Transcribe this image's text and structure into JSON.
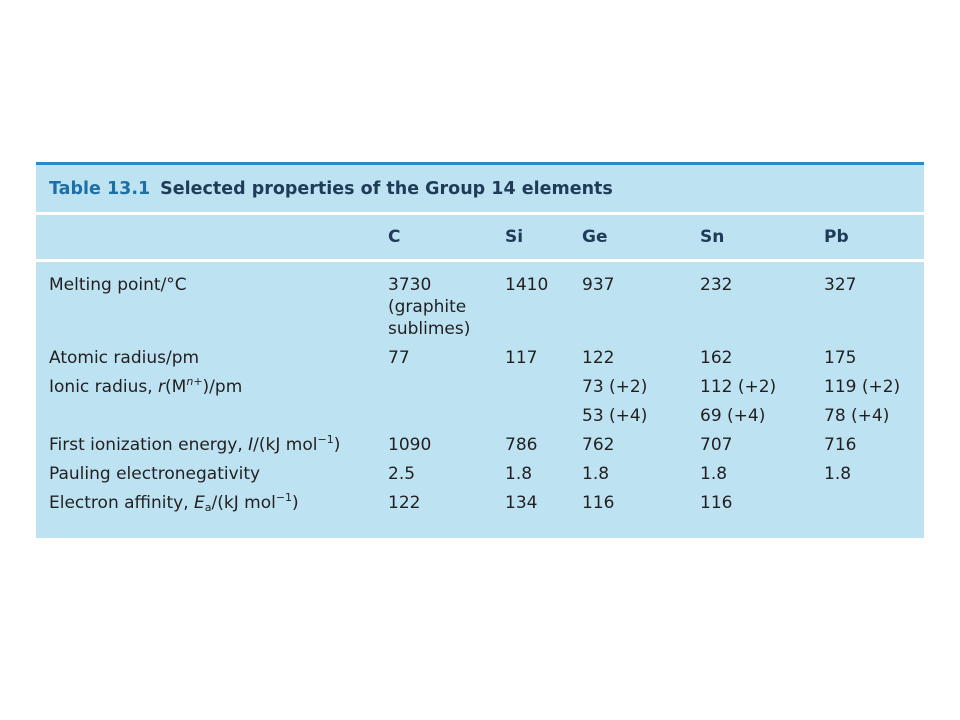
{
  "table": {
    "label": "Table 13.1",
    "title": "Selected properties of the Group 14 elements",
    "columns": [
      "C",
      "Si",
      "Ge",
      "Sn",
      "Pb"
    ],
    "rows": [
      {
        "property": {
          "pre": "Melting point/°C"
        },
        "cells": [
          "3730",
          "1410",
          "937",
          "232",
          "327"
        ],
        "note": [
          "(graphite",
          "sublimes)"
        ]
      },
      {
        "property": {
          "pre": "Atomic radius/pm"
        },
        "cells": [
          "77",
          "117",
          "122",
          "162",
          "175"
        ]
      },
      {
        "property": {
          "pre": "Ionic radius, ",
          "it": "r",
          "mid": "(M",
          "sup": "n+",
          "post": ")/pm"
        },
        "cells": [
          "",
          "",
          "73 (+2)",
          "112 (+2)",
          "119 (+2)"
        ]
      },
      {
        "property": null,
        "cells": [
          "",
          "",
          "53 (+4)",
          "69 (+4)",
          "78 (+4)"
        ]
      },
      {
        "property": {
          "pre": "First ionization energy, ",
          "it": "I",
          "mid": "/(kJ mol",
          "sup": "−1",
          "post": ")"
        },
        "cells": [
          "1090",
          "786",
          "762",
          "707",
          "716"
        ]
      },
      {
        "property": {
          "pre": "Pauling electronegativity"
        },
        "cells": [
          "2.5",
          "1.8",
          "1.8",
          "1.8",
          "1.8"
        ]
      },
      {
        "property": {
          "pre": "Electron affinity, ",
          "it": "E",
          "sub": "a",
          "mid": "/(kJ mol",
          "sup": "−1",
          "post": ")"
        },
        "cells": [
          "122",
          "134",
          "116",
          "116",
          ""
        ]
      }
    ]
  },
  "colors": {
    "panel": "#bde3f3",
    "rule": "#2b8ac6",
    "title_label": "#1d6fa5",
    "title_text": "#1f3b57"
  }
}
